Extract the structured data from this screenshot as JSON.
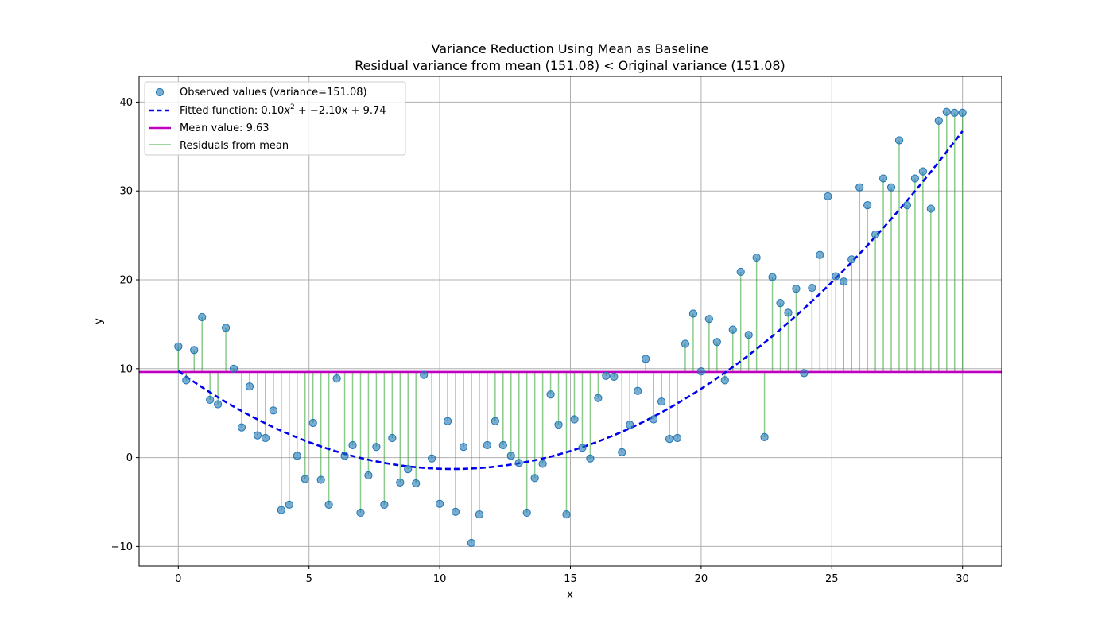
{
  "chart_data": {
    "type": "scatter",
    "title": "Variance Reduction Using Mean as Baseline",
    "subtitle": "Residual variance from mean (151.08) < Original variance (151.08)",
    "xlabel": "x",
    "ylabel": "y",
    "xlim": [
      -1.5,
      31.5
    ],
    "ylim": [
      -12.2,
      42.9
    ],
    "xticks": [
      0,
      5,
      10,
      15,
      20,
      25,
      30
    ],
    "yticks": [
      -10,
      0,
      10,
      20,
      30,
      40
    ],
    "xtick_labels": [
      "0",
      "5",
      "10",
      "15",
      "20",
      "25",
      "30"
    ],
    "ytick_labels": [
      "−10",
      "0",
      "10",
      "20",
      "30",
      "40"
    ],
    "grid": true,
    "legend_position": "upper-left",
    "legend": {
      "observed": "Observed values (variance=151.08)",
      "fitted_prefix": "Fitted function: 0.10",
      "fitted_sup": "2",
      "fitted_suffix": " + −2.10x + 9.74",
      "mean": "Mean value: 9.63",
      "residuals": "Residuals from mean"
    },
    "mean_value": 9.63,
    "fitted_coefficients": {
      "a": 0.1,
      "b": -2.1,
      "c": 9.74
    },
    "colors": {
      "points": "#1f77b4",
      "fitted": "#0000ee",
      "mean": "#bf00bf",
      "residuals": "#2ca02c"
    },
    "series": [
      {
        "name": "Observed values (variance=151.08)",
        "x": [
          0.0,
          0.303,
          0.606,
          0.909,
          1.212,
          1.515,
          1.818,
          2.121,
          2.424,
          2.727,
          3.03,
          3.333,
          3.636,
          3.939,
          4.242,
          4.545,
          4.848,
          5.152,
          5.455,
          5.758,
          6.061,
          6.364,
          6.667,
          6.97,
          7.273,
          7.576,
          7.879,
          8.182,
          8.485,
          8.788,
          9.091,
          9.394,
          9.697,
          10.0,
          10.303,
          10.606,
          10.909,
          11.212,
          11.515,
          11.818,
          12.121,
          12.424,
          12.727,
          13.03,
          13.333,
          13.636,
          13.939,
          14.242,
          14.545,
          14.848,
          15.152,
          15.455,
          15.758,
          16.061,
          16.364,
          16.667,
          16.97,
          17.273,
          17.576,
          17.879,
          18.182,
          18.485,
          18.788,
          19.091,
          19.394,
          19.697,
          20.0,
          20.303,
          20.606,
          20.909,
          21.212,
          21.515,
          21.818,
          22.121,
          22.424,
          22.727,
          23.03,
          23.333,
          23.636,
          23.939,
          24.242,
          24.545,
          24.848,
          25.152,
          25.455,
          25.758,
          26.061,
          26.364,
          26.667,
          26.97,
          27.273,
          27.576,
          27.879,
          28.182,
          28.485,
          28.788,
          29.091,
          29.394,
          29.697,
          30.0
        ],
        "y": [
          12.5,
          8.7,
          12.1,
          15.8,
          6.5,
          6.0,
          14.6,
          10.0,
          3.4,
          8.0,
          2.5,
          2.2,
          5.3,
          -5.9,
          -5.3,
          0.2,
          -2.4,
          3.9,
          -2.5,
          -5.3,
          8.9,
          0.2,
          1.4,
          -6.2,
          -2.0,
          1.2,
          -5.3,
          2.2,
          -2.8,
          -1.3,
          -2.9,
          9.3,
          -0.1,
          -5.2,
          4.1,
          -6.1,
          1.2,
          -9.6,
          -6.4,
          1.4,
          4.1,
          1.4,
          0.2,
          -0.6,
          -6.2,
          -2.3,
          -0.7,
          7.1,
          3.7,
          -6.4,
          4.3,
          1.1,
          -0.1,
          6.7,
          9.2,
          9.1,
          0.6,
          3.7,
          7.5,
          11.1,
          4.3,
          6.3,
          2.1,
          2.2,
          12.8,
          16.2,
          9.7,
          15.6,
          13.0,
          8.7,
          14.4,
          20.9,
          13.8,
          22.5,
          2.3,
          20.3,
          17.4,
          16.3,
          19.0,
          9.5,
          19.1,
          22.8,
          29.4,
          20.4,
          19.8,
          22.3,
          30.4,
          28.4,
          25.1,
          31.4,
          30.4,
          35.7,
          28.4,
          31.4,
          32.2,
          28.0,
          37.9,
          38.9,
          38.8,
          38.8
        ]
      }
    ]
  }
}
